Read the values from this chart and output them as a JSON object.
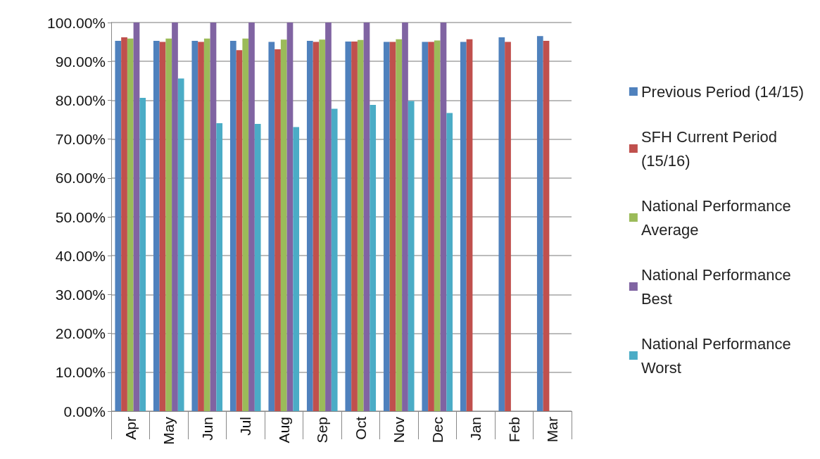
{
  "chart_data": {
    "type": "bar",
    "categories": [
      "Apr",
      "May",
      "Jun",
      "Jul",
      "Aug",
      "Sep",
      "Oct",
      "Nov",
      "Dec",
      "Jan",
      "Feb",
      "Mar"
    ],
    "series": [
      {
        "name": "Previous Period (14/15)",
        "color": "#4f81bd",
        "values": [
          95.3,
          95.3,
          95.3,
          95.3,
          95.0,
          95.3,
          95.1,
          95.0,
          95.0,
          95.0,
          96.2,
          96.5
        ]
      },
      {
        "name": "SFH Current Period (15/16)",
        "color": "#c0504d",
        "values": [
          96.2,
          95.0,
          95.0,
          92.9,
          93.1,
          95.0,
          95.1,
          95.0,
          95.0,
          95.7,
          95.0,
          95.3
        ]
      },
      {
        "name": "National Performance Average",
        "color": "#9bbb59",
        "values": [
          95.9,
          95.9,
          95.9,
          95.9,
          95.6,
          95.6,
          95.5,
          95.7,
          95.4,
          null,
          null,
          null
        ]
      },
      {
        "name": "National Performance Best",
        "color": "#8064a2",
        "values": [
          100,
          100,
          100,
          100,
          100,
          100,
          100,
          100,
          100,
          null,
          null,
          null
        ]
      },
      {
        "name": "National Performance Worst",
        "color": "#4bacc6",
        "values": [
          80.6,
          85.6,
          74.1,
          73.9,
          73.1,
          77.8,
          78.8,
          79.8,
          76.7,
          null,
          null,
          null
        ]
      }
    ],
    "ylim": [
      0,
      100
    ],
    "yticks": [
      {
        "value": 0,
        "label": "0.00%"
      },
      {
        "value": 10,
        "label": "10.00%"
      },
      {
        "value": 20,
        "label": "20.00%"
      },
      {
        "value": 30,
        "label": "30.00%"
      },
      {
        "value": 40,
        "label": "40.00%"
      },
      {
        "value": 50,
        "label": "50.00%"
      },
      {
        "value": 60,
        "label": "60.00%"
      },
      {
        "value": 70,
        "label": "70.00%"
      },
      {
        "value": 80,
        "label": "80.00%"
      },
      {
        "value": 90,
        "label": "90.00%"
      },
      {
        "value": 100,
        "label": "100.00%"
      }
    ],
    "grid": "y",
    "legend": "right"
  }
}
